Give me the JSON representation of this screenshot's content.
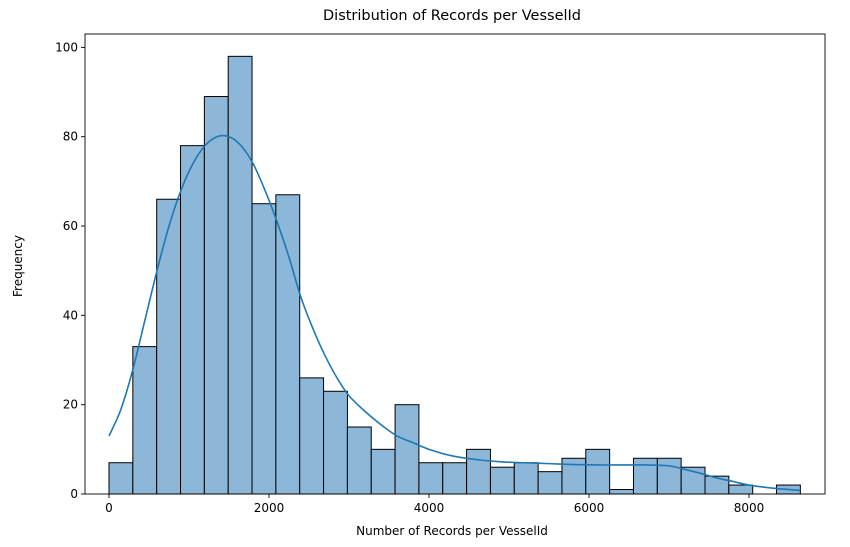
{
  "chart_data": {
    "type": "bar",
    "title": "Distribution of Records per VesselId",
    "xlabel": "Number of Records per VesselId",
    "ylabel": "Frequency",
    "xlim": [
      -300,
      8950
    ],
    "ylim": [
      0,
      103
    ],
    "xticks": [
      0,
      2000,
      4000,
      6000,
      8000
    ],
    "yticks": [
      0,
      20,
      40,
      60,
      80,
      100
    ],
    "bin_width": 298,
    "bins": [
      {
        "start": 0,
        "count": 7
      },
      {
        "start": 298,
        "count": 33
      },
      {
        "start": 596,
        "count": 66
      },
      {
        "start": 894,
        "count": 78
      },
      {
        "start": 1192,
        "count": 89
      },
      {
        "start": 1490,
        "count": 98
      },
      {
        "start": 1788,
        "count": 65
      },
      {
        "start": 2086,
        "count": 67
      },
      {
        "start": 2384,
        "count": 26
      },
      {
        "start": 2682,
        "count": 23
      },
      {
        "start": 2980,
        "count": 15
      },
      {
        "start": 3278,
        "count": 10
      },
      {
        "start": 3576,
        "count": 20
      },
      {
        "start": 3874,
        "count": 7
      },
      {
        "start": 4172,
        "count": 7
      },
      {
        "start": 4470,
        "count": 10
      },
      {
        "start": 4768,
        "count": 6
      },
      {
        "start": 5066,
        "count": 7
      },
      {
        "start": 5364,
        "count": 5
      },
      {
        "start": 5662,
        "count": 8
      },
      {
        "start": 5960,
        "count": 10
      },
      {
        "start": 6258,
        "count": 1
      },
      {
        "start": 6556,
        "count": 8
      },
      {
        "start": 6854,
        "count": 8
      },
      {
        "start": 7152,
        "count": 6
      },
      {
        "start": 7450,
        "count": 4
      },
      {
        "start": 7748,
        "count": 2
      },
      {
        "start": 8046,
        "count": 0
      },
      {
        "start": 8344,
        "count": 2
      }
    ],
    "kde": {
      "x": [
        0,
        150,
        300,
        450,
        600,
        750,
        900,
        1050,
        1200,
        1350,
        1500,
        1650,
        1800,
        1950,
        2100,
        2250,
        2400,
        2550,
        2700,
        2850,
        3000,
        3200,
        3400,
        3600,
        3800,
        4000,
        4300,
        4600,
        4900,
        5200,
        5500,
        5800,
        6100,
        6400,
        6700,
        7000,
        7200,
        7400,
        7600,
        7800,
        8000,
        8300,
        8640
      ],
      "y": [
        13,
        19,
        28,
        39,
        50,
        60,
        68,
        74,
        78,
        80,
        80,
        78,
        74,
        68,
        61,
        53,
        44,
        37,
        31,
        26,
        22,
        18.5,
        15.5,
        13,
        11.5,
        10,
        8.5,
        7.7,
        7.2,
        7,
        6.8,
        6.6,
        6.5,
        6.5,
        6.5,
        6.3,
        5.5,
        4.6,
        3.6,
        2.8,
        2,
        1.3,
        0.8
      ]
    },
    "colors": {
      "bar_fill": "#8db7d9",
      "bar_edge": "#000000",
      "kde_line": "#1f77b4"
    },
    "grid": false,
    "legend": "none"
  }
}
